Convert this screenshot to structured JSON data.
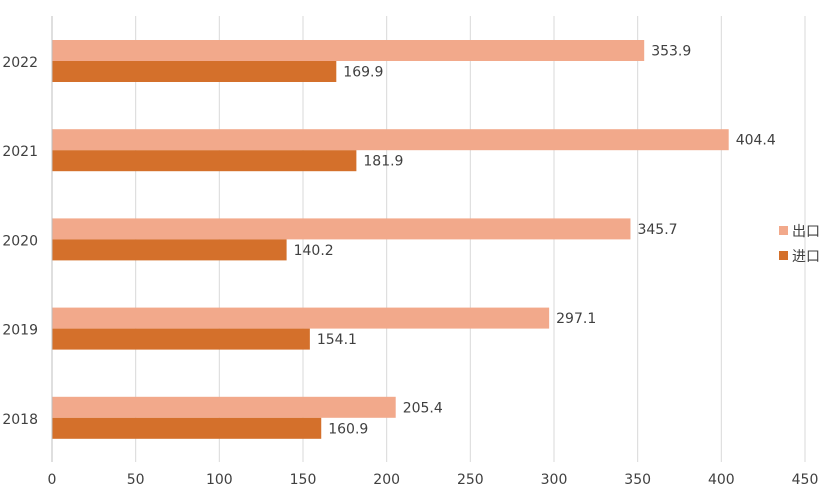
{
  "chart_data": {
    "type": "bar",
    "orientation": "horizontal",
    "title": "",
    "xlabel": "",
    "ylabel": "",
    "categories": [
      "2022",
      "2021",
      "2020",
      "2019",
      "2018"
    ],
    "series": [
      {
        "name": "出口",
        "values": [
          353.9,
          404.4,
          345.7,
          297.1,
          205.4
        ],
        "color": "#F2A98B"
      },
      {
        "name": "进口",
        "values": [
          169.9,
          181.9,
          140.2,
          154.1,
          160.9
        ],
        "color": "#D4702B"
      }
    ],
    "xlim": [
      0,
      450
    ],
    "xticks": [
      0,
      50,
      100,
      150,
      200,
      250,
      300,
      350,
      400,
      450
    ],
    "grid": true,
    "legend_position": "right"
  }
}
